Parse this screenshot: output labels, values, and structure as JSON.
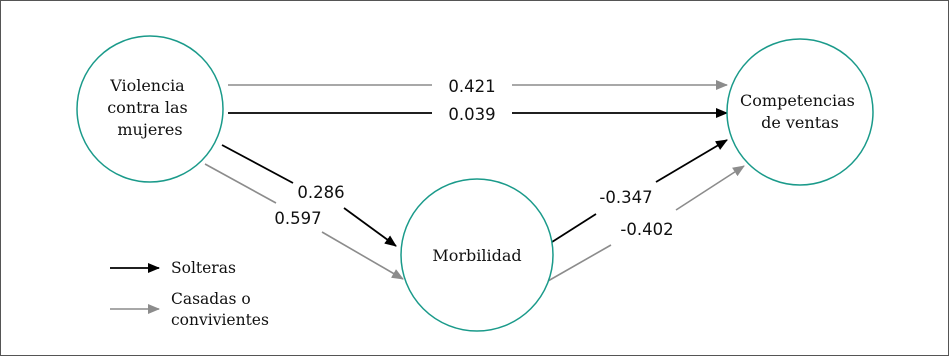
{
  "colors": {
    "frame": "#555555",
    "node_stroke": "#1a9a8a",
    "singles": "#000000",
    "married": "#8c8c8c"
  },
  "nodes": {
    "violence": {
      "lines": [
        "Violencia",
        "contra las",
        "mujeres"
      ]
    },
    "sales": {
      "lines": [
        "Competencias",
        "de ventas"
      ]
    },
    "morbidity": {
      "lines": [
        "Morbilidad"
      ]
    }
  },
  "paths": {
    "violence_sales_married": "0.421",
    "violence_sales_singles": "0.039",
    "violence_morbidity_singles": "0.286",
    "violence_morbidity_married": "0.597",
    "morbidity_sales_singles": "-0.347",
    "morbidity_sales_married": "-0.402"
  },
  "legend": {
    "singles_label": "Solteras",
    "married_label_lines": [
      "Casadas o",
      "convivientes"
    ]
  }
}
